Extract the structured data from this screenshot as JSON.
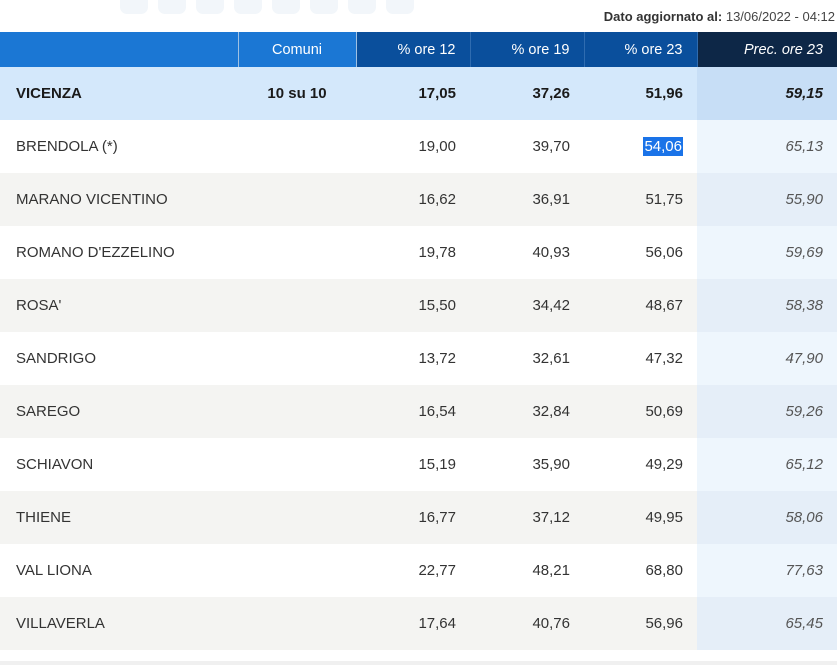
{
  "updated": {
    "label": "Dato aggiornato al:",
    "value": "13/06/2022 - 04:12"
  },
  "table": {
    "headers": {
      "name": "",
      "comuni": "Comuni",
      "ore12": "% ore 12",
      "ore19": "% ore 19",
      "ore23": "% ore 23",
      "prec": "Prec. ore 23"
    },
    "province": {
      "name": "VICENZA",
      "comuni": "10 su 10",
      "ore12": "17,05",
      "ore19": "37,26",
      "ore23": "51,96",
      "prec": "59,15"
    },
    "rows": [
      {
        "name": "BRENDOLA (*)",
        "ore12": "19,00",
        "ore19": "39,70",
        "ore23": "54,06",
        "prec": "65,13"
      },
      {
        "name": "MARANO VICENTINO",
        "ore12": "16,62",
        "ore19": "36,91",
        "ore23": "51,75",
        "prec": "55,90"
      },
      {
        "name": "ROMANO D'EZZELINO",
        "ore12": "19,78",
        "ore19": "40,93",
        "ore23": "56,06",
        "prec": "59,69"
      },
      {
        "name": "ROSA'",
        "ore12": "15,50",
        "ore19": "34,42",
        "ore23": "48,67",
        "prec": "58,38"
      },
      {
        "name": "SANDRIGO",
        "ore12": "13,72",
        "ore19": "32,61",
        "ore23": "47,32",
        "prec": "47,90"
      },
      {
        "name": "SAREGO",
        "ore12": "16,54",
        "ore19": "32,84",
        "ore23": "50,69",
        "prec": "59,26"
      },
      {
        "name": "SCHIAVON",
        "ore12": "15,19",
        "ore19": "35,90",
        "ore23": "49,29",
        "prec": "65,12"
      },
      {
        "name": "THIENE",
        "ore12": "16,77",
        "ore19": "37,12",
        "ore23": "49,95",
        "prec": "58,06"
      },
      {
        "name": "VAL LIONA",
        "ore12": "22,77",
        "ore19": "48,21",
        "ore23": "68,80",
        "prec": "77,63"
      },
      {
        "name": "VILLAVERLA",
        "ore12": "17,64",
        "ore19": "40,76",
        "ore23": "56,96",
        "prec": "65,45"
      }
    ]
  },
  "colors": {
    "header_light": "#1b77d4",
    "header_dark": "#0a4f9c",
    "header_prec": "#0d2747",
    "province_row": "#d4e8fb",
    "selection": "#1a73e8"
  }
}
